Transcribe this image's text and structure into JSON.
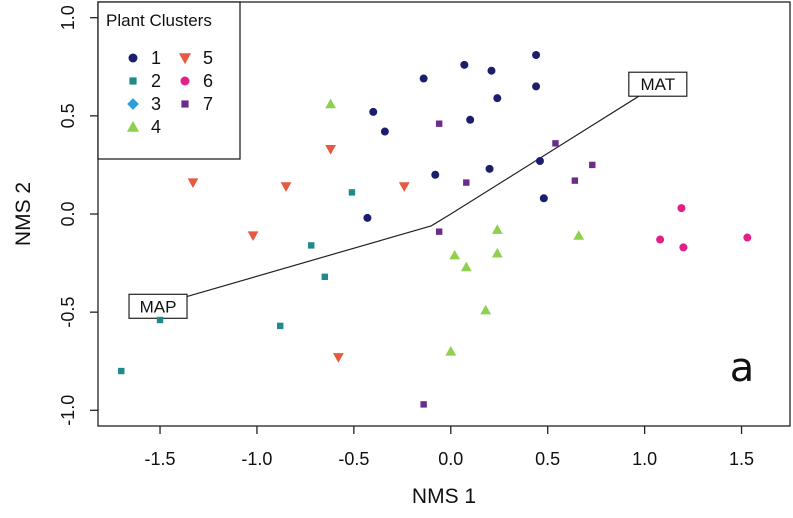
{
  "chart_data": {
    "type": "scatter",
    "xlabel": "NMS 1",
    "ylabel": "NMS 2",
    "xlim": [
      -1.82,
      1.75
    ],
    "ylim": [
      -1.08,
      1.08
    ],
    "x_ticks": [
      -1.5,
      -1.0,
      -0.5,
      0.0,
      0.5,
      1.0,
      1.5
    ],
    "x_tick_labels": [
      "-1.5",
      "-1.0",
      "-0.5",
      "0.0",
      "0.5",
      "1.0",
      "1.5"
    ],
    "y_ticks": [
      -1.0,
      -0.5,
      0.0,
      0.5,
      1.0
    ],
    "y_tick_labels": [
      "-1.0",
      "-0.5",
      "0.0",
      "0.5",
      "1.0"
    ],
    "legend": {
      "title": "Plant Clusters",
      "placement": "top-left",
      "entries": [
        {
          "label": "1",
          "series": "1"
        },
        {
          "label": "2",
          "series": "2"
        },
        {
          "label": "3",
          "series": "3"
        },
        {
          "label": "4",
          "series": "4"
        },
        {
          "label": "5",
          "series": "5"
        },
        {
          "label": "6",
          "series": "6"
        },
        {
          "label": "7",
          "series": "7"
        }
      ]
    },
    "series": [
      {
        "name": "1",
        "marker": "circle",
        "color": "#1b1f6b",
        "points": [
          [
            0.44,
            0.81
          ],
          [
            0.07,
            0.76
          ],
          [
            0.21,
            0.73
          ],
          [
            -0.14,
            0.69
          ],
          [
            0.44,
            0.65
          ],
          [
            0.24,
            0.59
          ],
          [
            -0.4,
            0.52
          ],
          [
            0.1,
            0.48
          ],
          [
            -0.34,
            0.42
          ],
          [
            0.46,
            0.27
          ],
          [
            0.2,
            0.23
          ],
          [
            -0.08,
            0.2
          ],
          [
            0.48,
            0.08
          ],
          [
            -0.43,
            -0.02
          ]
        ]
      },
      {
        "name": "2",
        "marker": "square",
        "color": "#1e8a8a",
        "points": [
          [
            -0.51,
            0.11
          ],
          [
            -0.72,
            -0.16
          ],
          [
            -0.65,
            -0.32
          ],
          [
            -1.5,
            -0.54
          ],
          [
            -0.88,
            -0.57
          ],
          [
            -1.7,
            -0.8
          ]
        ]
      },
      {
        "name": "3",
        "marker": "diamond",
        "color": "#2b9fe0",
        "points": []
      },
      {
        "name": "4",
        "marker": "triangle-up",
        "color": "#8fd14f",
        "points": [
          [
            -0.62,
            0.56
          ],
          [
            0.24,
            -0.08
          ],
          [
            0.66,
            -0.11
          ],
          [
            0.02,
            -0.21
          ],
          [
            0.24,
            -0.2
          ],
          [
            0.08,
            -0.27
          ],
          [
            0.18,
            -0.49
          ],
          [
            0.0,
            -0.7
          ]
        ]
      },
      {
        "name": "5",
        "marker": "triangle-down",
        "color": "#e55a40",
        "points": [
          [
            -0.62,
            0.33
          ],
          [
            -1.33,
            0.16
          ],
          [
            -0.85,
            0.14
          ],
          [
            -0.24,
            0.14
          ],
          [
            -1.02,
            -0.11
          ],
          [
            -0.58,
            -0.73
          ]
        ]
      },
      {
        "name": "6",
        "marker": "circle",
        "color": "#e0218a",
        "points": [
          [
            1.19,
            0.03
          ],
          [
            1.08,
            -0.13
          ],
          [
            1.2,
            -0.17
          ],
          [
            1.53,
            -0.12
          ]
        ]
      },
      {
        "name": "7",
        "marker": "square",
        "color": "#6a2d8a",
        "points": [
          [
            -0.06,
            0.46
          ],
          [
            0.54,
            0.36
          ],
          [
            0.73,
            0.25
          ],
          [
            0.64,
            0.17
          ],
          [
            0.08,
            0.16
          ],
          [
            -0.06,
            -0.09
          ],
          [
            -0.14,
            -0.97
          ]
        ]
      }
    ],
    "vectors": [
      {
        "label": "MAT",
        "path": [
          [
            0.0,
            0.0
          ],
          [
            0.97,
            0.6
          ]
        ]
      },
      {
        "label": "MAP",
        "path": [
          [
            0.0,
            0.0
          ],
          [
            -0.1,
            -0.06
          ],
          [
            -1.5,
            -0.46
          ]
        ]
      }
    ],
    "annotation": "a",
    "grid": false
  }
}
